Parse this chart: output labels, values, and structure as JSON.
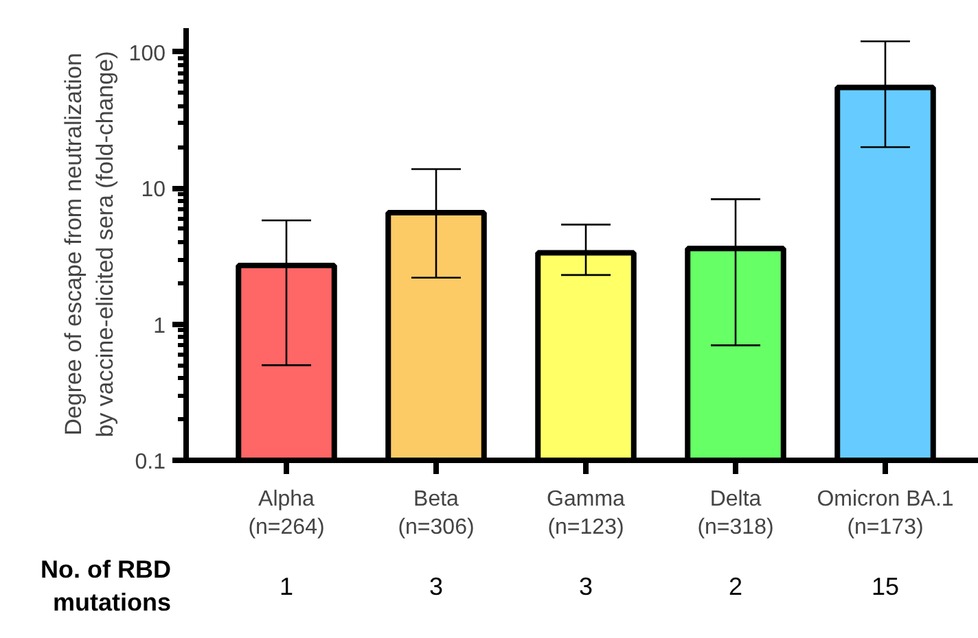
{
  "chart_data": {
    "type": "bar",
    "ylabel": "Degree of escape from neutralization\nby vaccine-elicited sera (fold-change)",
    "categories": [
      "Alpha\n(n=264)",
      "Beta\n(n=306)",
      "Gamma\n(n=123)",
      "Delta\n(n=318)",
      "Omicron BA.1\n(n=173)"
    ],
    "values": [
      2.7,
      6.6,
      3.35,
      3.6,
      55
    ],
    "errors": [
      [
        0.5,
        5.8
      ],
      [
        2.2,
        13.8
      ],
      [
        2.3,
        5.4
      ],
      [
        0.7,
        8.3
      ],
      [
        20,
        120
      ]
    ],
    "colors": [
      "#ff6666",
      "#fdcb66",
      "#ffff66",
      "#66ff66",
      "#66ccff"
    ],
    "log": true,
    "ylim": [
      0.1,
      150
    ],
    "yticks": [
      0.1,
      1,
      10,
      100
    ],
    "grid": false,
    "legend": false,
    "annotations": [
      "No. of RBD\nmutations",
      "1",
      "3",
      "3",
      "2",
      "15"
    ]
  }
}
